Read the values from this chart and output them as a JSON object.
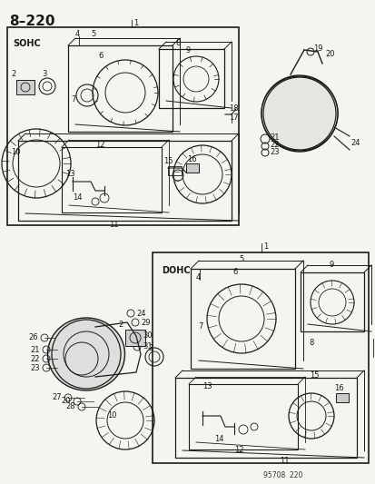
{
  "page_number": "8–220",
  "background_color": "#f5f5f0",
  "fig_width": 4.14,
  "fig_height": 5.33,
  "dpi": 100,
  "footer": "95708  220"
}
